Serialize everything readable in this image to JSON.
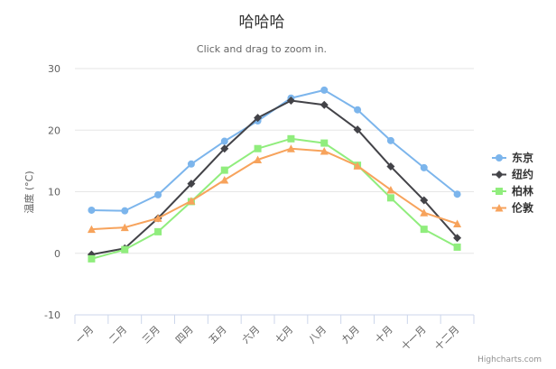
{
  "chart_data": {
    "type": "line",
    "title": "哈哈哈",
    "subtitle": "Click and drag to zoom in.",
    "ylabel": "温度 (°C)",
    "xlabel": "",
    "categories": [
      "一月",
      "二月",
      "三月",
      "四月",
      "五月",
      "六月",
      "七月",
      "八月",
      "九月",
      "十月",
      "十一月",
      "十二月"
    ],
    "ylim": [
      -10,
      30
    ],
    "yticks": [
      -10,
      0,
      10,
      20,
      30
    ],
    "grid": true,
    "legend_position": "right",
    "series": [
      {
        "name": "东京",
        "color": "#7cb5ec",
        "marker": "circle",
        "values": [
          7.0,
          6.9,
          9.5,
          14.5,
          18.2,
          21.5,
          25.2,
          26.5,
          23.3,
          18.3,
          13.9,
          9.6
        ]
      },
      {
        "name": "纽约",
        "color": "#434348",
        "marker": "diamond",
        "values": [
          -0.2,
          0.8,
          5.7,
          11.3,
          17.0,
          22.0,
          24.8,
          24.1,
          20.1,
          14.1,
          8.6,
          2.5
        ]
      },
      {
        "name": "柏林",
        "color": "#90ed7d",
        "marker": "square",
        "values": [
          -0.9,
          0.6,
          3.5,
          8.4,
          13.5,
          17.0,
          18.6,
          17.9,
          14.3,
          9.0,
          3.9,
          1.0
        ]
      },
      {
        "name": "伦敦",
        "color": "#f7a35c",
        "marker": "triangle",
        "values": [
          3.9,
          4.2,
          5.7,
          8.5,
          11.9,
          15.2,
          17.0,
          16.6,
          14.2,
          10.3,
          6.6,
          4.8
        ]
      }
    ]
  },
  "credit": "Highcharts.com"
}
